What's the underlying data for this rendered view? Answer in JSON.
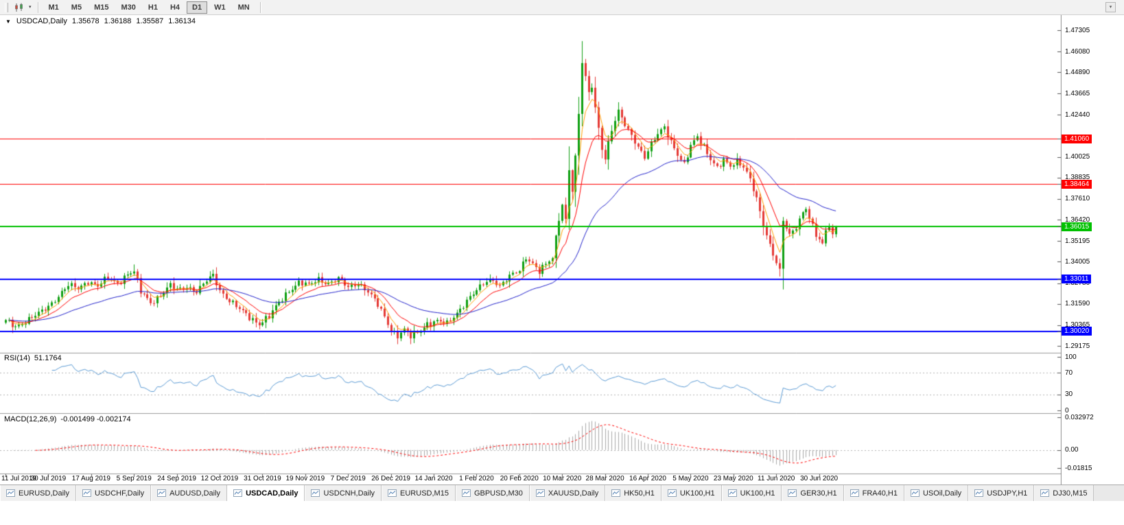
{
  "toolbar": {
    "timeframes": [
      "M1",
      "M5",
      "M15",
      "M30",
      "H1",
      "H4",
      "D1",
      "W1",
      "MN"
    ],
    "active_timeframe": "D1"
  },
  "chart": {
    "symbol_title": "USDCAD,Daily",
    "open": "1.35678",
    "high": "1.36188",
    "low": "1.35587",
    "close": "1.36134"
  },
  "price_axis_labels": [
    "1.47305",
    "1.46080",
    "1.44890",
    "1.43665",
    "1.42440",
    "1.40025",
    "1.38835",
    "1.37610",
    "1.36420",
    "1.35195",
    "1.34005",
    "1.32780",
    "1.31590",
    "1.30365",
    "1.29175"
  ],
  "price_lines": [
    {
      "price": 1.4106,
      "label": "1.41060",
      "color": "#FF0000",
      "width": 1
    },
    {
      "price": 1.38464,
      "label": "1.38464",
      "color": "#FF0000",
      "width": 1
    },
    {
      "price": 1.36015,
      "label": "1.36015",
      "color": "#00C000",
      "width": 2
    },
    {
      "price": 1.33011,
      "label": "1.33011",
      "color": "#0000FF",
      "width": 2
    },
    {
      "price": 1.3002,
      "label": "1.30020",
      "color": "#0000FF",
      "width": 2
    }
  ],
  "date_axis": [
    "11 Jul 2019",
    "30 Jul 2019",
    "17 Aug 2019",
    "5 Sep 2019",
    "24 Sep 2019",
    "12 Oct 2019",
    "31 Oct 2019",
    "19 Nov 2019",
    "7 Dec 2019",
    "26 Dec 2019",
    "14 Jan 2020",
    "1 Feb 2020",
    "20 Feb 2020",
    "10 Mar 2020",
    "28 Mar 2020",
    "16 Apr 2020",
    "5 May 2020",
    "23 May 2020",
    "11 Jun 2020",
    "30 Jun 2020"
  ],
  "rsi_panel": {
    "name": "RSI(14)",
    "value": "51.1764",
    "axis_labels": [
      "100",
      "70",
      "30",
      "0"
    ],
    "levels": [
      70,
      30
    ],
    "line_color": "#5B9BD5"
  },
  "macd_panel": {
    "name": "MACD(12,26,9)",
    "value": "-0.001499 -0.002174",
    "axis_labels": [
      "0.032972",
      "0.00",
      "-0.01815"
    ],
    "histogram_color": "#A8A8A8",
    "signal_color": "#FF0000"
  },
  "tabs": {
    "items": [
      "EURUSD,Daily",
      "USDCHF,Daily",
      "AUDUSD,Daily",
      "USDCAD,Daily",
      "USDCNH,Daily",
      "EURUSD,M15",
      "GBPUSD,M30",
      "XAUUSD,Daily",
      "HK50,H1",
      "UK100,H1",
      "UK100,H1",
      "GER30,H1",
      "FRA40,H1",
      "USOil,Daily",
      "USDJPY,H1",
      "DJ30,M15"
    ],
    "active_index": 3
  },
  "chart_data": {
    "type": "candlestick",
    "symbol": "USDCAD",
    "timeframe": "Daily",
    "title": "USDCAD,Daily",
    "visible_range": {
      "price_min": 1.29175,
      "price_max": 1.47305,
      "date_start": "11 Jul 2019",
      "date_end": "30 Jun 2020"
    },
    "candle_count": 253,
    "up_color": "#0FA012",
    "down_color": "#E53935",
    "close_anchors": [
      [
        0,
        1.306
      ],
      [
        3,
        1.3032
      ],
      [
        6,
        1.3058
      ],
      [
        10,
        1.31
      ],
      [
        13,
        1.3148
      ],
      [
        16,
        1.3205
      ],
      [
        19,
        1.3262
      ],
      [
        22,
        1.3248
      ],
      [
        25,
        1.3292
      ],
      [
        28,
        1.326
      ],
      [
        31,
        1.3306
      ],
      [
        34,
        1.328
      ],
      [
        37,
        1.3332
      ],
      [
        39,
        1.3342
      ],
      [
        41,
        1.3226
      ],
      [
        44,
        1.3168
      ],
      [
        47,
        1.321
      ],
      [
        50,
        1.3262
      ],
      [
        52,
        1.3236
      ],
      [
        55,
        1.3262
      ],
      [
        58,
        1.3228
      ],
      [
        61,
        1.3288
      ],
      [
        63,
        1.3322
      ],
      [
        65,
        1.324
      ],
      [
        68,
        1.3178
      ],
      [
        71,
        1.3125
      ],
      [
        74,
        1.3082
      ],
      [
        77,
        1.3048
      ],
      [
        80,
        1.3085
      ],
      [
        83,
        1.3165
      ],
      [
        86,
        1.3238
      ],
      [
        89,
        1.3282
      ],
      [
        92,
        1.3262
      ],
      [
        95,
        1.3302
      ],
      [
        98,
        1.3278
      ],
      [
        101,
        1.33
      ],
      [
        104,
        1.3252
      ],
      [
        107,
        1.3282
      ],
      [
        110,
        1.3228
      ],
      [
        113,
        1.315
      ],
      [
        115,
        1.3085
      ],
      [
        117,
        1.3012
      ],
      [
        119,
        1.2978
      ],
      [
        121,
        1.3008
      ],
      [
        123,
        1.2968
      ],
      [
        125,
        1.2995
      ],
      [
        128,
        1.3048
      ],
      [
        131,
        1.3058
      ],
      [
        134,
        1.3042
      ],
      [
        137,
        1.311
      ],
      [
        140,
        1.3178
      ],
      [
        143,
        1.3232
      ],
      [
        146,
        1.3292
      ],
      [
        148,
        1.3302
      ],
      [
        150,
        1.3262
      ],
      [
        153,
        1.3312
      ],
      [
        156,
        1.3352
      ],
      [
        158,
        1.3432
      ],
      [
        160,
        1.3392
      ],
      [
        162,
        1.3342
      ],
      [
        164,
        1.3382
      ],
      [
        166,
        1.3422
      ],
      [
        168,
        1.3658
      ],
      [
        169,
        1.3732
      ],
      [
        170,
        1.3648
      ],
      [
        171,
        1.3928
      ],
      [
        172,
        1.3812
      ],
      [
        173,
        1.3988
      ],
      [
        174,
        1.4248
      ],
      [
        175,
        1.454
      ],
      [
        176,
        1.4462
      ],
      [
        177,
        1.4368
      ],
      [
        178,
        1.4422
      ],
      [
        179,
        1.4288
      ],
      [
        180,
        1.4172
      ],
      [
        181,
        1.4052
      ],
      [
        182,
        1.3992
      ],
      [
        184,
        1.4152
      ],
      [
        186,
        1.4262
      ],
      [
        188,
        1.4196
      ],
      [
        190,
        1.4132
      ],
      [
        192,
        1.4058
      ],
      [
        194,
        1.3992
      ],
      [
        196,
        1.4072
      ],
      [
        198,
        1.4142
      ],
      [
        200,
        1.4182
      ],
      [
        202,
        1.4088
      ],
      [
        204,
        1.4008
      ],
      [
        206,
        1.3952
      ],
      [
        208,
        1.4072
      ],
      [
        210,
        1.4128
      ],
      [
        212,
        1.4062
      ],
      [
        214,
        1.3982
      ],
      [
        216,
        1.3932
      ],
      [
        218,
        1.3988
      ],
      [
        220,
        1.3958
      ],
      [
        222,
        1.3982
      ],
      [
        224,
        1.394
      ],
      [
        226,
        1.3868
      ],
      [
        228,
        1.3762
      ],
      [
        230,
        1.3622
      ],
      [
        232,
        1.3498
      ],
      [
        234,
        1.3392
      ],
      [
        235,
        1.3342
      ],
      [
        236,
        1.3632
      ],
      [
        238,
        1.3552
      ],
      [
        240,
        1.3608
      ],
      [
        242,
        1.3688
      ],
      [
        243,
        1.3712
      ],
      [
        244,
        1.3648
      ],
      [
        246,
        1.3548
      ],
      [
        248,
        1.3498
      ],
      [
        249,
        1.3582
      ],
      [
        250,
        1.3622
      ],
      [
        251,
        1.3552
      ],
      [
        252,
        1.3613
      ]
    ],
    "wick_overrides": {
      "39": {
        "high": 1.3385
      },
      "123": {
        "low": 1.2952
      },
      "175": {
        "high": 1.4668
      },
      "235": {
        "low": 1.3316
      }
    },
    "moving_averages": [
      {
        "period": 5,
        "type": "ema",
        "color": "#FFA000"
      },
      {
        "period": 12,
        "type": "ema",
        "color": "#FF0000"
      },
      {
        "period": 40,
        "type": "ema",
        "color": "#2222CC"
      }
    ],
    "indicators": [
      {
        "name": "RSI",
        "period": 14,
        "current": 51.1764
      },
      {
        "name": "MACD",
        "fast": 12,
        "slow": 26,
        "signal": 9,
        "current_main": -0.001499,
        "current_signal": -0.002174
      }
    ]
  }
}
